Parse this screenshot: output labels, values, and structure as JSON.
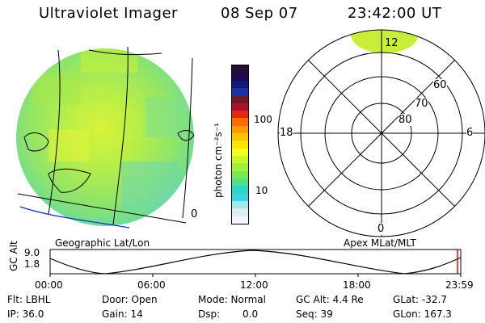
{
  "header": {
    "instrument": "Ultraviolet Imager",
    "date": "08 Sep 07",
    "time": "23:42:00 UT"
  },
  "colorbar": {
    "unit_label": "photon cm⁻²s⁻¹",
    "ticks": [
      "100",
      "10"
    ],
    "scale": "log",
    "colors": [
      "#2b0a3d",
      "#1c0b52",
      "#0f1a7a",
      "#1b2fa8",
      "#6a1a2a",
      "#b0102a",
      "#e02a10",
      "#ff6a00",
      "#ff9a00",
      "#ffc400",
      "#ffe400",
      "#f4ff20",
      "#c8f82a",
      "#9ef03a",
      "#78e84a",
      "#4ee08a",
      "#2ad8c0",
      "#40d0e0",
      "#9fe6ee",
      "#dbeff2",
      "#f2f6f7"
    ]
  },
  "geo_panel": {
    "label": "Geographic Lat/Lon",
    "edge_label": "0"
  },
  "apex_panel": {
    "label": "Apex MLat/MLT",
    "mlt_labels": {
      "top": "12",
      "left": "18",
      "right": "6",
      "bottom": "0"
    },
    "mlat_labels": [
      "60",
      "70",
      "80"
    ]
  },
  "alt_plot": {
    "ylabel": "GC Alt",
    "yticks": [
      "9.0",
      "1.8"
    ],
    "xticks": [
      "00:00",
      "06:00",
      "12:00",
      "18:00",
      "23:59"
    ]
  },
  "info": {
    "row1": {
      "flt": "Flt: LBHL",
      "door": "Door: Open",
      "mode": "Mode: Normal",
      "gc_alt": "GC Alt: 4.4 Re",
      "glat": "GLat: -32.7"
    },
    "row2": {
      "ip": "IP: 36.0",
      "gain": "Gain: 14",
      "dsp_label": "Dsp:",
      "dsp_value": "0.0",
      "seq": "Seq: 39",
      "glon": "GLon: 167.3"
    }
  }
}
